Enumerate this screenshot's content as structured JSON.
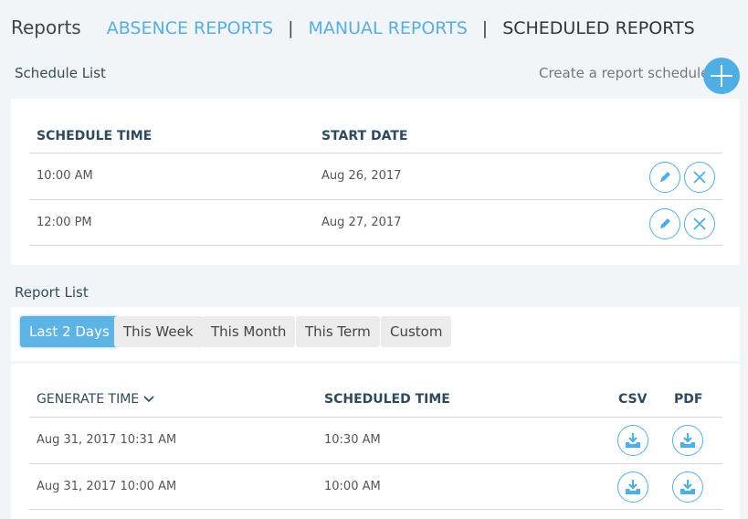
{
  "nav": {
    "title": "Reports",
    "tabs": [
      "ABSENCE REPORTS",
      "MANUAL REPORTS",
      "SCHEDULED REPORTS"
    ],
    "separator": "|"
  },
  "schedule": {
    "section_title": "Schedule List",
    "create_label": "Create a report schedule",
    "headers": [
      "SCHEDULE TIME",
      "START DATE"
    ],
    "rows": [
      {
        "time": "10:00 AM",
        "start": "Aug 26, 2017"
      },
      {
        "time": "12:00 PM",
        "start": "Aug 27, 2017"
      }
    ]
  },
  "report": {
    "section_title": "Report List",
    "filters": [
      "Last 2 Days",
      "This Week",
      "This Month",
      "This Term",
      "Custom"
    ],
    "active_filter": "Last 2 Days",
    "headers": [
      "GENERATE TIME",
      "SCHEDULED TIME",
      "CSV",
      "PDF"
    ],
    "rows": [
      {
        "generated": "Aug 31, 2017 10:31 AM",
        "scheduled": "10:30 AM"
      },
      {
        "generated": "Aug 31, 2017 10:00 AM",
        "scheduled": "10:00 AM"
      }
    ]
  },
  "colors": {
    "accent": "#5aaedf",
    "heading": "#2f4a5c",
    "background": "#f1f5f8"
  }
}
